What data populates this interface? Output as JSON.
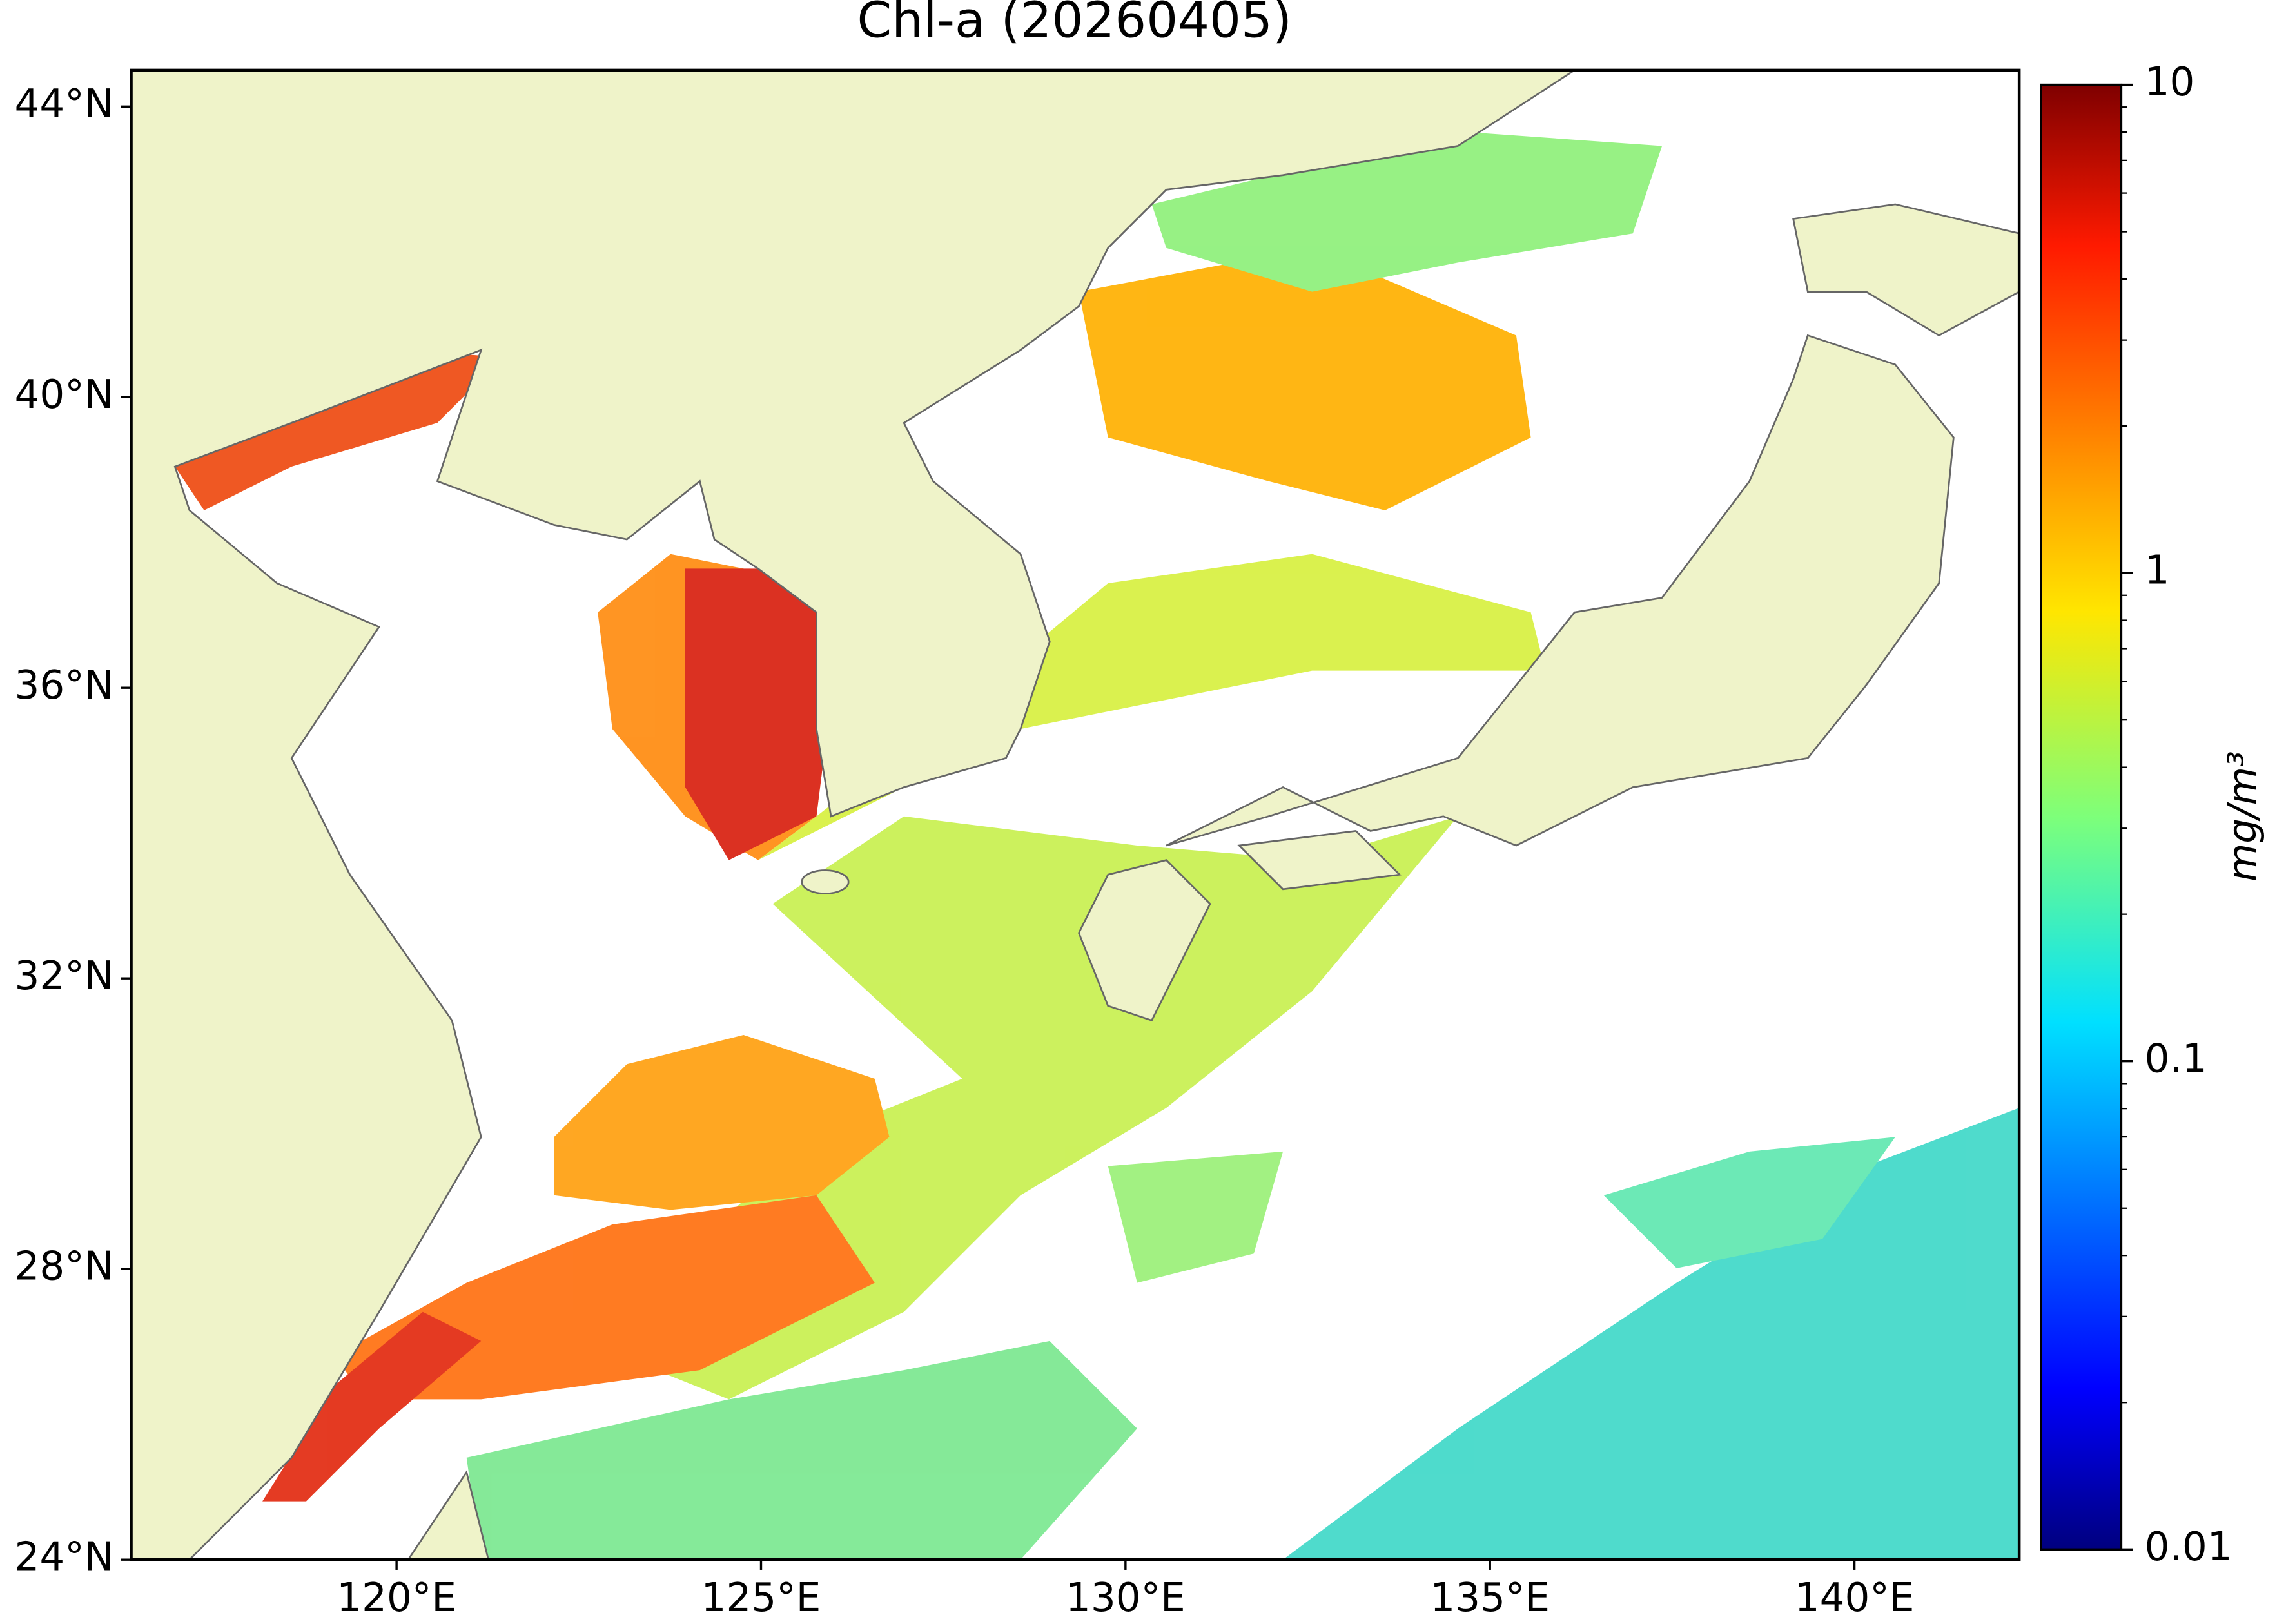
{
  "chart_data": {
    "type": "map",
    "title": "Chl-a (20260405)",
    "xlim": [
      116.36,
      142.26
    ],
    "ylim": [
      24.0,
      44.5
    ],
    "xticks": [
      {
        "value": 120,
        "label": "120°E"
      },
      {
        "value": 125,
        "label": "125°E"
      },
      {
        "value": 130,
        "label": "130°E"
      },
      {
        "value": 135,
        "label": "135°E"
      },
      {
        "value": 140,
        "label": "140°E"
      }
    ],
    "yticks": [
      {
        "value": 24,
        "label": "24°N"
      },
      {
        "value": 28,
        "label": "28°N"
      },
      {
        "value": 32,
        "label": "32°N"
      },
      {
        "value": 36,
        "label": "36°N"
      },
      {
        "value": 40,
        "label": "40°N"
      },
      {
        "value": 44,
        "label": "44°N"
      }
    ],
    "colorbar": {
      "label": "mg/m³",
      "clim": [
        0.01,
        10
      ],
      "log": true,
      "colormap": "jet",
      "ticks": [
        0.01,
        0.1,
        1,
        10
      ]
    }
  }
}
